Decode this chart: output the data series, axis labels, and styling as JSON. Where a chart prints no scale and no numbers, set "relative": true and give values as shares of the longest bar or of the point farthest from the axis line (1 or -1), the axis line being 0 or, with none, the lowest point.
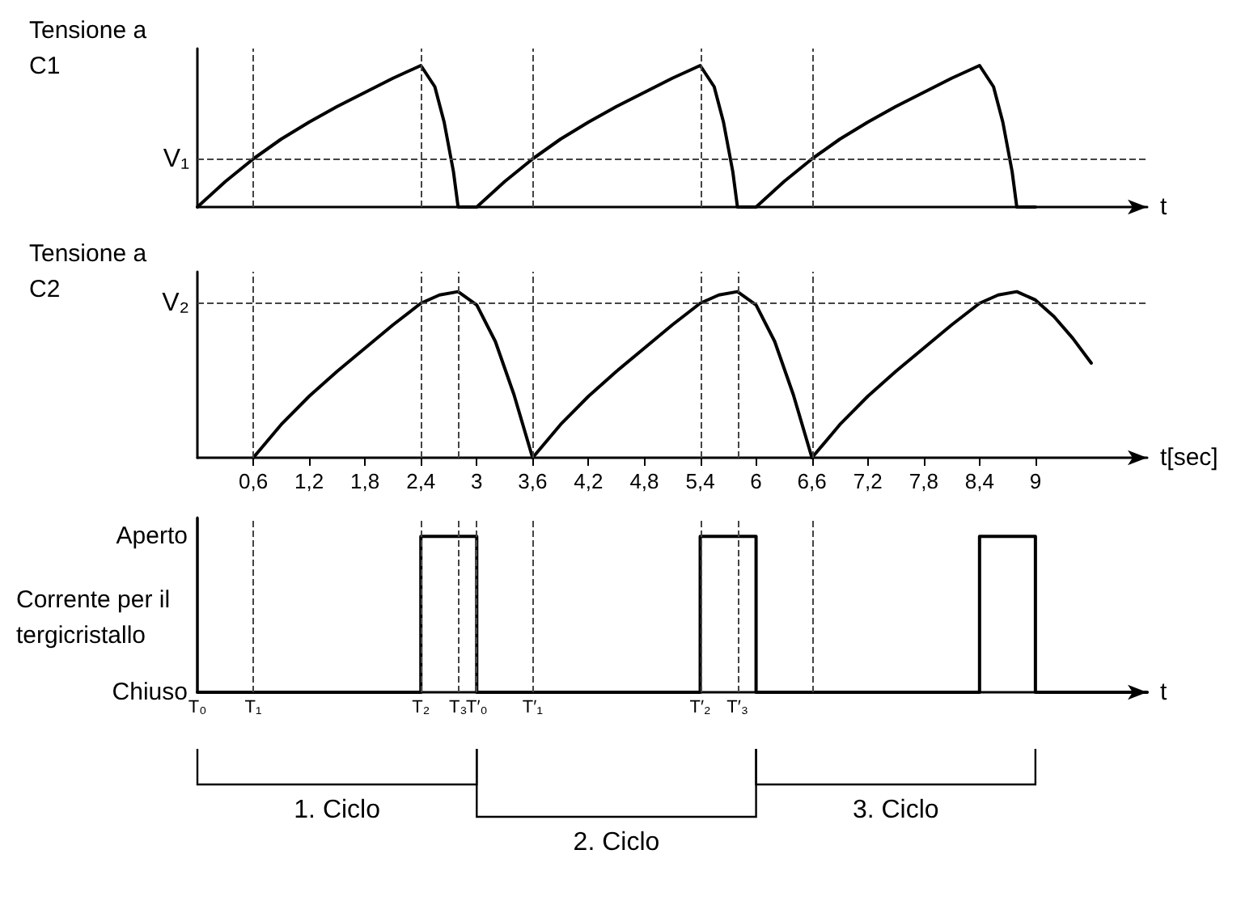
{
  "chart_data": [
    {
      "type": "line",
      "ylabel": "Tensione a C1",
      "xlabel": "t",
      "relative": true,
      "xlim": [
        0,
        10.2
      ],
      "tick_labels": false,
      "xticks": [
        0.6,
        1.2,
        1.8,
        2.4,
        3,
        3.6,
        4.2,
        4.8,
        5.4,
        6,
        6.6,
        7.2,
        7.8,
        8.4,
        9
      ],
      "series": [
        {
          "color": "#000000",
          "x": [
            0,
            0.3,
            0.6,
            0.9,
            1.2,
            1.5,
            1.8,
            2.1,
            2.4,
            2.55,
            2.65,
            2.75,
            2.8,
            3.0,
            3.3,
            3.6,
            3.9,
            4.2,
            4.5,
            4.8,
            5.1,
            5.4,
            5.55,
            5.65,
            5.75,
            5.8,
            6.0,
            6.3,
            6.6,
            6.9,
            7.2,
            7.5,
            7.8,
            8.1,
            8.4,
            8.55,
            8.65,
            8.75,
            8.8,
            9.0
          ],
          "values": [
            0,
            0.18,
            0.34,
            0.48,
            0.6,
            0.71,
            0.81,
            0.91,
            1,
            0.85,
            0.6,
            0.25,
            0,
            0,
            0.18,
            0.34,
            0.48,
            0.6,
            0.71,
            0.81,
            0.91,
            1,
            0.85,
            0.6,
            0.25,
            0,
            0,
            0.18,
            0.34,
            0.48,
            0.6,
            0.71,
            0.81,
            0.91,
            1,
            0.85,
            0.6,
            0.25,
            0,
            0
          ]
        }
      ],
      "ref_lines": [
        {
          "axis": "y",
          "value": 0.34,
          "label": "V₁",
          "line_style": "dashed"
        },
        {
          "axis": "x",
          "value": 0.6,
          "line_style": "dashed"
        },
        {
          "axis": "x",
          "value": 2.4,
          "line_style": "dashed"
        },
        {
          "axis": "x",
          "value": 3.6,
          "line_style": "dashed"
        },
        {
          "axis": "x",
          "value": 5.4,
          "line_style": "dashed"
        },
        {
          "axis": "x",
          "value": 6.6,
          "line_style": "dashed"
        }
      ]
    },
    {
      "type": "line",
      "ylabel": "Tensione a C2",
      "xlabel": "t[sec]",
      "relative": true,
      "xlim": [
        0,
        10.2
      ],
      "tick_labels": "x",
      "xticks": [
        {
          "value": 0.6,
          "label": "0,6"
        },
        {
          "value": 1.2,
          "label": "1,2"
        },
        {
          "value": 1.8,
          "label": "1,8"
        },
        {
          "value": 2.4,
          "label": "2,4"
        },
        3,
        {
          "value": 3.6,
          "label": "3,6"
        },
        {
          "value": 4.2,
          "label": "4,2"
        },
        {
          "value": 4.8,
          "label": "4,8"
        },
        {
          "value": 5.4,
          "label": "5,4"
        },
        6,
        {
          "value": 6.6,
          "label": "6,6"
        },
        {
          "value": 7.2,
          "label": "7,2"
        },
        {
          "value": 7.8,
          "label": "7,8"
        },
        {
          "value": 8.4,
          "label": "8,4"
        },
        9
      ],
      "series": [
        {
          "color": "#000000",
          "x": [
            0.6,
            0.9,
            1.2,
            1.5,
            1.8,
            2.1,
            2.4,
            2.6,
            2.8,
            3.0,
            3.2,
            3.4,
            3.6,
            3.9,
            4.2,
            4.5,
            4.8,
            5.1,
            5.4,
            5.6,
            5.8,
            6.0,
            6.2,
            6.4,
            6.6,
            6.9,
            7.2,
            7.5,
            7.8,
            8.1,
            8.4,
            8.6,
            8.8,
            9.0,
            9.2,
            9.4,
            9.6
          ],
          "values": [
            0,
            0.2,
            0.37,
            0.52,
            0.66,
            0.8,
            0.93,
            0.98,
            1,
            0.92,
            0.7,
            0.38,
            0,
            0.2,
            0.37,
            0.52,
            0.66,
            0.8,
            0.93,
            0.98,
            1,
            0.92,
            0.7,
            0.38,
            0,
            0.2,
            0.37,
            0.52,
            0.66,
            0.8,
            0.93,
            0.98,
            1,
            0.95,
            0.85,
            0.72,
            0.57
          ]
        }
      ],
      "ref_lines": [
        {
          "axis": "y",
          "value": 0.93,
          "label": "V₂",
          "line_style": "dashed"
        },
        {
          "axis": "x",
          "value": 0.6,
          "line_style": "dashed"
        },
        {
          "axis": "x",
          "value": 2.4,
          "line_style": "dashed"
        },
        {
          "axis": "x",
          "value": 2.8,
          "line_style": "dashed"
        },
        {
          "axis": "x",
          "value": 3.6,
          "line_style": "dashed"
        },
        {
          "axis": "x",
          "value": 5.4,
          "line_style": "dashed"
        },
        {
          "axis": "x",
          "value": 5.8,
          "line_style": "dashed"
        },
        {
          "axis": "x",
          "value": 6.6,
          "line_style": "dashed"
        }
      ]
    },
    {
      "type": "step",
      "ylabel": "Corrente per il tergicristallo",
      "xlabel": "t",
      "relative": true,
      "xlim": [
        0,
        10.2
      ],
      "tick_labels": false,
      "xticks": [
        0.6,
        1.2,
        1.8,
        2.4,
        3,
        3.6,
        4.2,
        4.8,
        5.4,
        6,
        6.6,
        7.2,
        7.8,
        8.4,
        9
      ],
      "series": [
        {
          "color": "#000000",
          "x": [
            0,
            2.4,
            3.0,
            5.4,
            6.0,
            8.4,
            9.0,
            10.2
          ],
          "values": [
            0,
            1,
            0,
            1,
            0,
            1,
            0,
            0
          ]
        }
      ],
      "ref_lines": [
        {
          "axis": "x",
          "value": 0,
          "label": "T₀",
          "line_style": "solid"
        },
        {
          "axis": "x",
          "value": 0.6,
          "label": "T₁",
          "line_style": "dashed"
        },
        {
          "axis": "x",
          "value": 2.4,
          "label": "T₂",
          "line_style": "dashed"
        },
        {
          "axis": "x",
          "value": 2.8,
          "label": "T₃",
          "line_style": "dashed"
        },
        {
          "axis": "x",
          "value": 3,
          "label": "T′₀",
          "line_style": "dashed"
        },
        {
          "axis": "x",
          "value": 3.6,
          "label": "T′₁",
          "line_style": "dashed"
        },
        {
          "axis": "x",
          "value": 5.4,
          "label": "T′₂",
          "line_style": "dashed"
        },
        {
          "axis": "x",
          "value": 5.8,
          "label": "T′₃",
          "line_style": "dashed"
        },
        {
          "axis": "x",
          "value": 6.6,
          "line_style": "dashed"
        }
      ],
      "annotations": [
        "Aperto",
        "Chiuso",
        "1. Ciclo",
        "2. Ciclo",
        "3. Ciclo"
      ]
    }
  ]
}
